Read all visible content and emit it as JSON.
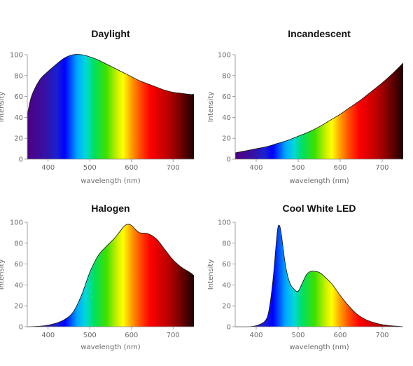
{
  "chart_data": [
    {
      "type": "area",
      "title": "Daylight",
      "xlabel": "wavelength (nm)",
      "ylabel": "Intensity",
      "xlim": [
        350,
        750
      ],
      "ylim": [
        0,
        100
      ],
      "xticks": [
        400,
        500,
        600,
        700
      ],
      "yticks": [
        0,
        20,
        40,
        60,
        80,
        100
      ],
      "x": [
        350,
        360,
        380,
        400,
        420,
        440,
        460,
        480,
        500,
        520,
        540,
        560,
        580,
        600,
        620,
        640,
        660,
        680,
        700,
        720,
        740,
        750
      ],
      "y": [
        42,
        60,
        76,
        84,
        91,
        97,
        100,
        100,
        98,
        95,
        91,
        87,
        83,
        79,
        75,
        72,
        69,
        66,
        64,
        63,
        62,
        62
      ]
    },
    {
      "type": "area",
      "title": "Incandescent",
      "xlabel": "wavelength (nm)",
      "ylabel": "Intensity",
      "xlim": [
        350,
        750
      ],
      "ylim": [
        0,
        100
      ],
      "xticks": [
        400,
        500,
        600,
        700
      ],
      "yticks": [
        0,
        20,
        40,
        60,
        80,
        100
      ],
      "x": [
        350,
        375,
        400,
        425,
        450,
        475,
        500,
        525,
        550,
        575,
        600,
        625,
        650,
        675,
        700,
        725,
        750
      ],
      "y": [
        6,
        8,
        10,
        12,
        15,
        18,
        22,
        26,
        31,
        37,
        43,
        50,
        57,
        65,
        73,
        82,
        92
      ]
    },
    {
      "type": "area",
      "title": "Halogen",
      "xlabel": "wavelength (nm)",
      "ylabel": "Intensity",
      "xlim": [
        350,
        750
      ],
      "ylim": [
        0,
        100
      ],
      "xticks": [
        400,
        500,
        600,
        700
      ],
      "yticks": [
        0,
        20,
        40,
        60,
        80,
        100
      ],
      "x": [
        350,
        380,
        400,
        420,
        440,
        460,
        480,
        500,
        520,
        540,
        560,
        580,
        590,
        600,
        610,
        620,
        640,
        660,
        680,
        700,
        720,
        740,
        750
      ],
      "y": [
        0,
        0.5,
        1.5,
        3.5,
        7,
        14,
        30,
        52,
        68,
        77,
        85,
        95,
        98,
        97,
        93,
        90,
        89,
        84,
        74,
        64,
        57,
        52,
        49
      ]
    },
    {
      "type": "area",
      "title": "Cool White LED",
      "xlabel": "wavelength (nm)",
      "ylabel": "Intensity",
      "xlim": [
        350,
        750
      ],
      "ylim": [
        0,
        100
      ],
      "xticks": [
        400,
        500,
        600,
        700
      ],
      "yticks": [
        0,
        20,
        40,
        60,
        80,
        100
      ],
      "x": [
        350,
        380,
        400,
        420,
        430,
        440,
        450,
        455,
        460,
        470,
        480,
        490,
        500,
        510,
        520,
        530,
        540,
        550,
        560,
        580,
        600,
        620,
        640,
        660,
        680,
        700,
        720,
        750
      ],
      "y": [
        0,
        0,
        1,
        5,
        15,
        45,
        90,
        97,
        88,
        58,
        42,
        36,
        34,
        42,
        50,
        53,
        53,
        52,
        49,
        41,
        30,
        20,
        12,
        7,
        4,
        2,
        1,
        0
      ]
    }
  ]
}
